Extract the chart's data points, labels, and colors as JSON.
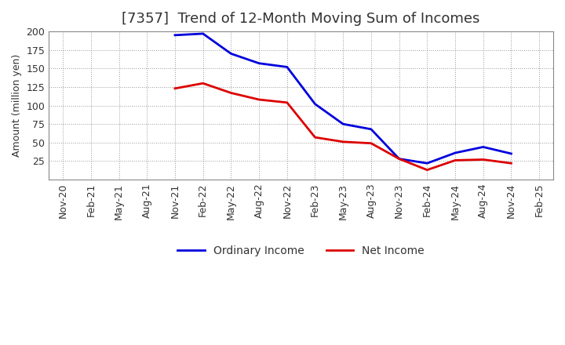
{
  "title": "[7357]  Trend of 12-Month Moving Sum of Incomes",
  "ylabel": "Amount (million yen)",
  "background_color": "#ffffff",
  "grid_color": "#999999",
  "x_labels": [
    "Nov-20",
    "Feb-21",
    "May-21",
    "Aug-21",
    "Nov-21",
    "Feb-22",
    "May-22",
    "Aug-22",
    "Nov-22",
    "Feb-23",
    "May-23",
    "Aug-23",
    "Nov-23",
    "Feb-24",
    "May-24",
    "Aug-24",
    "Nov-24",
    "Feb-25"
  ],
  "ordinary_income": {
    "label": "Ordinary Income",
    "color": "#0000dd",
    "data_x": [
      0,
      1,
      2,
      3,
      4,
      5,
      6,
      7,
      8,
      9,
      10,
      11,
      12,
      13,
      14,
      15,
      16,
      17
    ],
    "data_y": [
      null,
      null,
      null,
      null,
      195,
      197,
      170,
      157,
      152,
      102,
      75,
      68,
      28,
      22,
      36,
      44,
      35,
      null
    ]
  },
  "net_income": {
    "label": "Net Income",
    "color": "#dd0000",
    "data_x": [
      0,
      1,
      2,
      3,
      4,
      5,
      6,
      7,
      8,
      9,
      10,
      11,
      12,
      13,
      14,
      15,
      16,
      17
    ],
    "data_y": [
      null,
      null,
      null,
      null,
      123,
      130,
      117,
      108,
      104,
      57,
      51,
      49,
      28,
      13,
      26,
      27,
      22,
      null
    ]
  },
  "ylim": [
    0,
    200
  ],
  "yticks": [
    25,
    50,
    75,
    100,
    125,
    150,
    175,
    200
  ],
  "line_width": 2.0,
  "title_fontsize": 13,
  "axis_fontsize": 9,
  "legend_fontsize": 10,
  "title_color": "#333333",
  "tick_color": "#333333"
}
